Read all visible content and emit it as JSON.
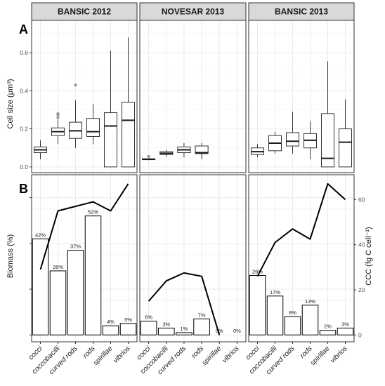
{
  "panel_letters": [
    "A",
    "B"
  ],
  "facets": [
    "BANSIC  2012",
    "NOVESAR  2013",
    "BANSIC  2013"
  ],
  "categories": [
    "cocci",
    "coccobacilli",
    "curved  rods",
    "rods",
    "spirillae",
    "vibrios"
  ],
  "colors": {
    "strip_fill": "#d9d9d9",
    "grid": "#ebebeb",
    "outlier": "#999999",
    "line": "#000000"
  },
  "chart_data": [
    {
      "type": "boxplot",
      "ylabel": "Cell size (μm³)",
      "ylim": [
        -0.03,
        0.77
      ],
      "yticks": [
        0.0,
        0.2,
        0.4,
        0.6
      ],
      "ytick_labels": [
        "0.0",
        "0.2",
        "0.4",
        "0.6"
      ],
      "facets": [
        {
          "title": "BANSIC  2012",
          "boxes": [
            {
              "category": "cocci",
              "whisker_low": 0.04,
              "q1": 0.075,
              "median": 0.09,
              "q3": 0.105,
              "whisker_high": 0.14,
              "outliers": []
            },
            {
              "category": "coccobacilli",
              "whisker_low": 0.12,
              "q1": 0.165,
              "median": 0.185,
              "q3": 0.205,
              "whisker_high": 0.25,
              "outliers": [
                0.26,
                0.275,
                0.28
              ]
            },
            {
              "category": "curved  rods",
              "whisker_low": 0.1,
              "q1": 0.15,
              "median": 0.19,
              "q3": 0.235,
              "whisker_high": 0.35,
              "outliers": [
                0.43
              ]
            },
            {
              "category": "rods",
              "whisker_low": 0.12,
              "q1": 0.16,
              "median": 0.185,
              "q3": 0.255,
              "whisker_high": 0.33,
              "outliers": []
            },
            {
              "category": "spirillae",
              "whisker_low": 0.0,
              "q1": 0.0,
              "median": 0.215,
              "q3": 0.285,
              "whisker_high": 0.61,
              "outliers": []
            },
            {
              "category": "vibrios",
              "whisker_low": 0.0,
              "q1": 0.0,
              "median": 0.245,
              "q3": 0.34,
              "whisker_high": 0.68,
              "outliers": []
            }
          ]
        },
        {
          "title": "NOVESAR  2013",
          "boxes": [
            {
              "category": "cocci",
              "whisker_low": 0.035,
              "q1": 0.038,
              "median": 0.04,
              "q3": 0.043,
              "whisker_high": 0.045,
              "outliers": [
                0.055
              ]
            },
            {
              "category": "coccobacilli",
              "whisker_low": 0.055,
              "q1": 0.065,
              "median": 0.072,
              "q3": 0.08,
              "whisker_high": 0.09,
              "outliers": []
            },
            {
              "category": "curved  rods",
              "whisker_low": 0.05,
              "q1": 0.075,
              "median": 0.09,
              "q3": 0.105,
              "whisker_high": 0.125,
              "outliers": []
            },
            {
              "category": "rods",
              "whisker_low": 0.04,
              "q1": 0.07,
              "median": 0.075,
              "q3": 0.11,
              "whisker_high": 0.125,
              "outliers": []
            },
            {
              "category": "spirillae",
              "whisker_low": null,
              "q1": null,
              "median": null,
              "q3": null,
              "whisker_high": null,
              "outliers": []
            },
            {
              "category": "vibrios",
              "whisker_low": null,
              "q1": null,
              "median": null,
              "q3": null,
              "whisker_high": null,
              "outliers": []
            }
          ]
        },
        {
          "title": "BANSIC  2013",
          "boxes": [
            {
              "category": "cocci",
              "whisker_low": 0.05,
              "q1": 0.065,
              "median": 0.08,
              "q3": 0.1,
              "whisker_high": 0.12,
              "outliers": []
            },
            {
              "category": "coccobacilli",
              "whisker_low": 0.07,
              "q1": 0.085,
              "median": 0.125,
              "q3": 0.165,
              "whisker_high": 0.185,
              "outliers": []
            },
            {
              "category": "curved  rods",
              "whisker_low": 0.07,
              "q1": 0.11,
              "median": 0.135,
              "q3": 0.18,
              "whisker_high": 0.29,
              "outliers": []
            },
            {
              "category": "rods",
              "whisker_low": 0.04,
              "q1": 0.1,
              "median": 0.14,
              "q3": 0.175,
              "whisker_high": 0.24,
              "outliers": []
            },
            {
              "category": "spirillae",
              "whisker_low": 0.0,
              "q1": 0.0,
              "median": 0.045,
              "q3": 0.28,
              "whisker_high": 0.555,
              "outliers": []
            },
            {
              "category": "vibrios",
              "whisker_low": 0.0,
              "q1": 0.0,
              "median": 0.13,
              "q3": 0.2,
              "whisker_high": 0.355,
              "outliers": []
            }
          ]
        }
      ]
    },
    {
      "type": "bar+line",
      "ylabel": "Biomass (%)",
      "y2label": "CCC (fg C cell⁻¹)",
      "biomass_ylim": [
        -3,
        70
      ],
      "ccc_ylim": [
        -3,
        71
      ],
      "y2ticks": [
        0,
        20,
        40,
        60
      ],
      "y2tick_labels": [
        "0",
        "20",
        "40",
        "60"
      ],
      "facets": [
        {
          "title": "BANSIC  2012",
          "biomass": [
            42,
            28,
            37,
            52,
            4,
            5
          ],
          "biomass_labels": [
            "42%",
            "28%",
            "37%",
            "52%",
            "4%",
            "5%"
          ],
          "ccc": [
            29,
            55,
            57,
            59,
            55,
            67
          ]
        },
        {
          "title": "NOVESAR  2013",
          "biomass": [
            6,
            3,
            1,
            7,
            0,
            0
          ],
          "biomass_labels": [
            "6%",
            "3%",
            "1%",
            "7%",
            "0%",
            "0%"
          ],
          "ccc": [
            15,
            24,
            27.5,
            26,
            0,
            null
          ]
        },
        {
          "title": "BANSIC  2013",
          "biomass": [
            26,
            17,
            8,
            13,
            2,
            3
          ],
          "biomass_labels": [
            "26%",
            "17%",
            "8%",
            "13%",
            "2%",
            "3%"
          ],
          "ccc": [
            26,
            41,
            47,
            42.5,
            67,
            60
          ]
        }
      ]
    }
  ]
}
